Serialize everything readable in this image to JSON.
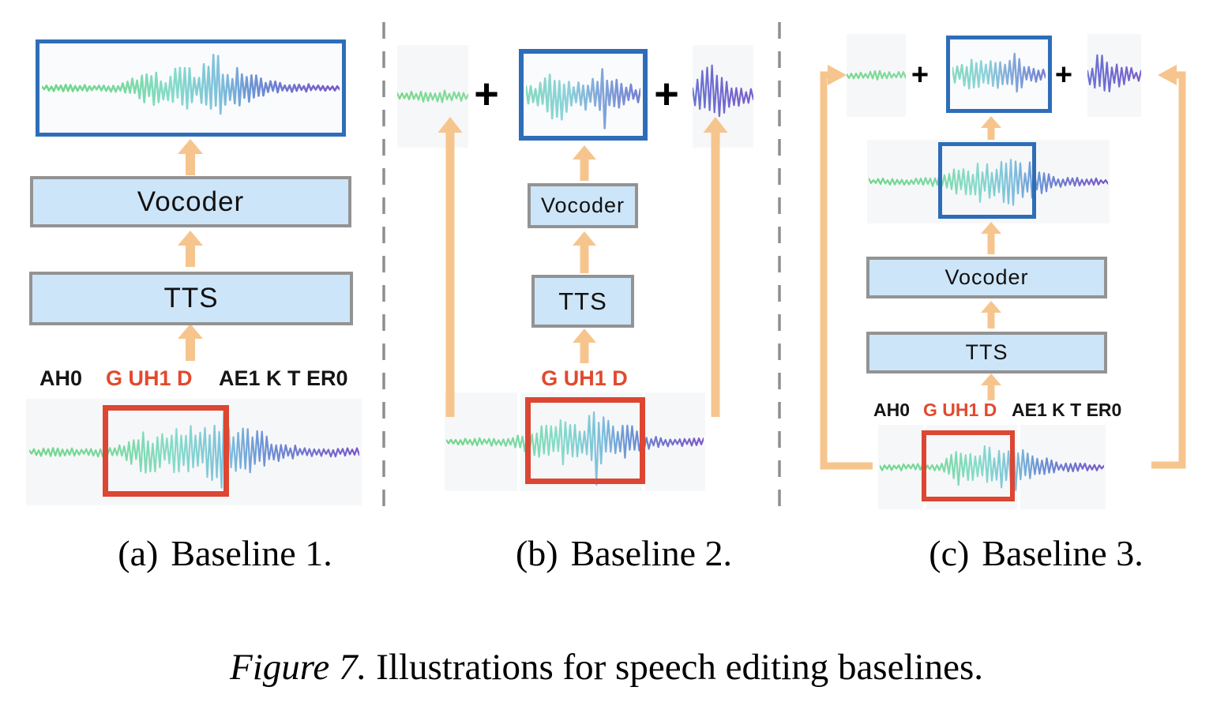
{
  "figure": {
    "caption_prefix": "Figure 7.",
    "caption_text": "Illustrations for speech editing baselines."
  },
  "panels": [
    {
      "id": "a",
      "caption_label": "(a)",
      "caption_title": "Baseline 1.",
      "blocks": {
        "vocoder": "Vocoder",
        "tts": "TTS"
      },
      "phonemes": {
        "left": "AH0",
        "edited": "G UH1 D",
        "right": "AE1 K T ER0"
      }
    },
    {
      "id": "b",
      "caption_label": "(b)",
      "caption_title": "Baseline 2.",
      "blocks": {
        "vocoder": "Vocoder",
        "tts": "TTS"
      },
      "phonemes": {
        "edited": "G UH1 D"
      },
      "plus": "+"
    },
    {
      "id": "c",
      "caption_label": "(c)",
      "caption_title": "Baseline 3.",
      "blocks": {
        "vocoder": "Vocoder",
        "tts": "TTS"
      },
      "phonemes": {
        "left": "AH0",
        "edited": "G UH1 D",
        "right": "AE1 K T ER0"
      },
      "plus": "+"
    }
  ],
  "colors": {
    "red_box": "#dc4632",
    "red_text": "#e2492e",
    "blue_box": "#2e6db8",
    "arrow_orange": "#f6c58d",
    "block_fill": "#cde5f8",
    "block_border": "#939393",
    "strip_bg": "#f6f7f9",
    "separator_gray": "#8f8f8f",
    "waveform_gradients": {
      "full": [
        [
          0,
          "#6fd787"
        ],
        [
          0.26,
          "#7bd9a0"
        ],
        [
          0.44,
          "#85dcca"
        ],
        [
          0.6,
          "#7fc0dd"
        ],
        [
          0.7,
          "#6d96d6"
        ],
        [
          0.82,
          "#6f77cf"
        ],
        [
          1,
          "#7b57c9"
        ]
      ],
      "mid": [
        [
          0,
          "#85d9c0"
        ],
        [
          0.35,
          "#8cd3da"
        ],
        [
          0.62,
          "#83a9db"
        ],
        [
          1,
          "#7381d0"
        ]
      ],
      "quiet": [
        [
          0,
          "#79d98c"
        ],
        [
          1,
          "#82dba0"
        ]
      ],
      "tail": [
        [
          0,
          "#6a74d2"
        ],
        [
          1,
          "#7a5ecb"
        ]
      ]
    }
  }
}
